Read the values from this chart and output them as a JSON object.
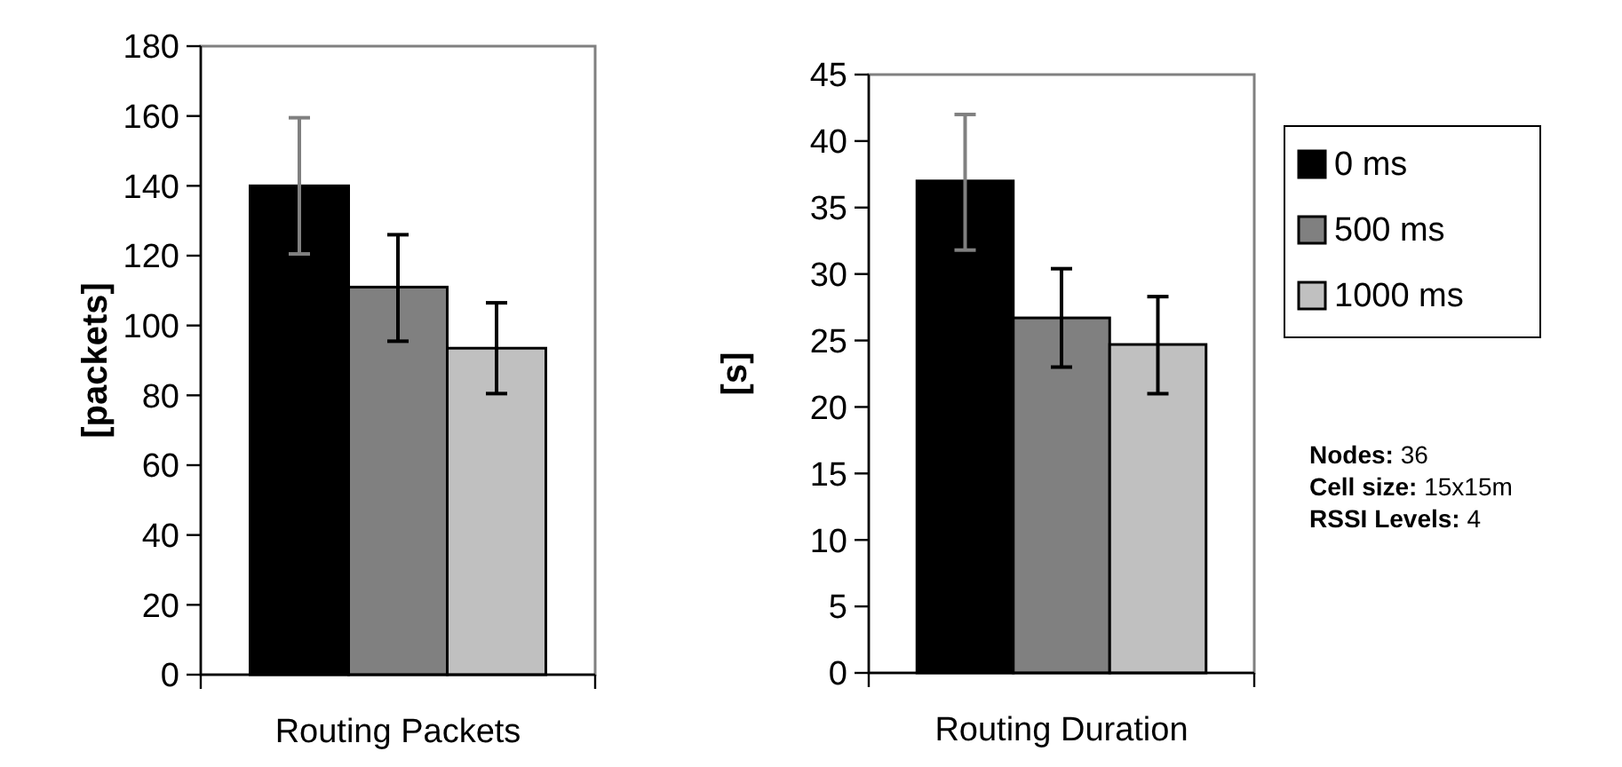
{
  "chart_data": [
    {
      "type": "bar",
      "ylabel": "[packets]",
      "categories": [
        "Routing Packets"
      ],
      "ylim": [
        0,
        180
      ],
      "yticks": [
        0,
        20,
        40,
        60,
        80,
        100,
        120,
        140,
        160,
        180
      ],
      "legend": false,
      "series": [
        {
          "color": "#000000",
          "values": [
            140
          ],
          "errors": [
            [
              120.5,
              159.5
            ]
          ]
        },
        {
          "color": "#808080",
          "values": [
            111
          ],
          "errors": [
            [
              95.5,
              126
            ]
          ]
        },
        {
          "color": "#c0c0c0",
          "values": [
            93.5
          ],
          "errors": [
            [
              80.5,
              106.5
            ]
          ]
        }
      ]
    },
    {
      "type": "bar",
      "ylabel": "[s]",
      "categories": [
        "Routing Duration"
      ],
      "ylim": [
        0,
        45
      ],
      "yticks": [
        0,
        5,
        10,
        15,
        20,
        25,
        30,
        35,
        40,
        45
      ],
      "legend": "right",
      "annotations": [
        "Nodes: 36",
        "Cell size: 15x15m",
        "RSSI Levels: 4"
      ],
      "series": [
        {
          "name": "0 ms",
          "color": "#000000",
          "values": [
            37
          ],
          "errors": [
            [
              31.8,
              42
            ]
          ]
        },
        {
          "name": "500 ms",
          "color": "#808080",
          "values": [
            26.7
          ],
          "errors": [
            [
              23,
              30.4
            ]
          ]
        },
        {
          "name": "1000 ms",
          "color": "#c0c0c0",
          "values": [
            24.7
          ],
          "errors": [
            [
              21,
              28.3
            ]
          ]
        }
      ]
    }
  ]
}
